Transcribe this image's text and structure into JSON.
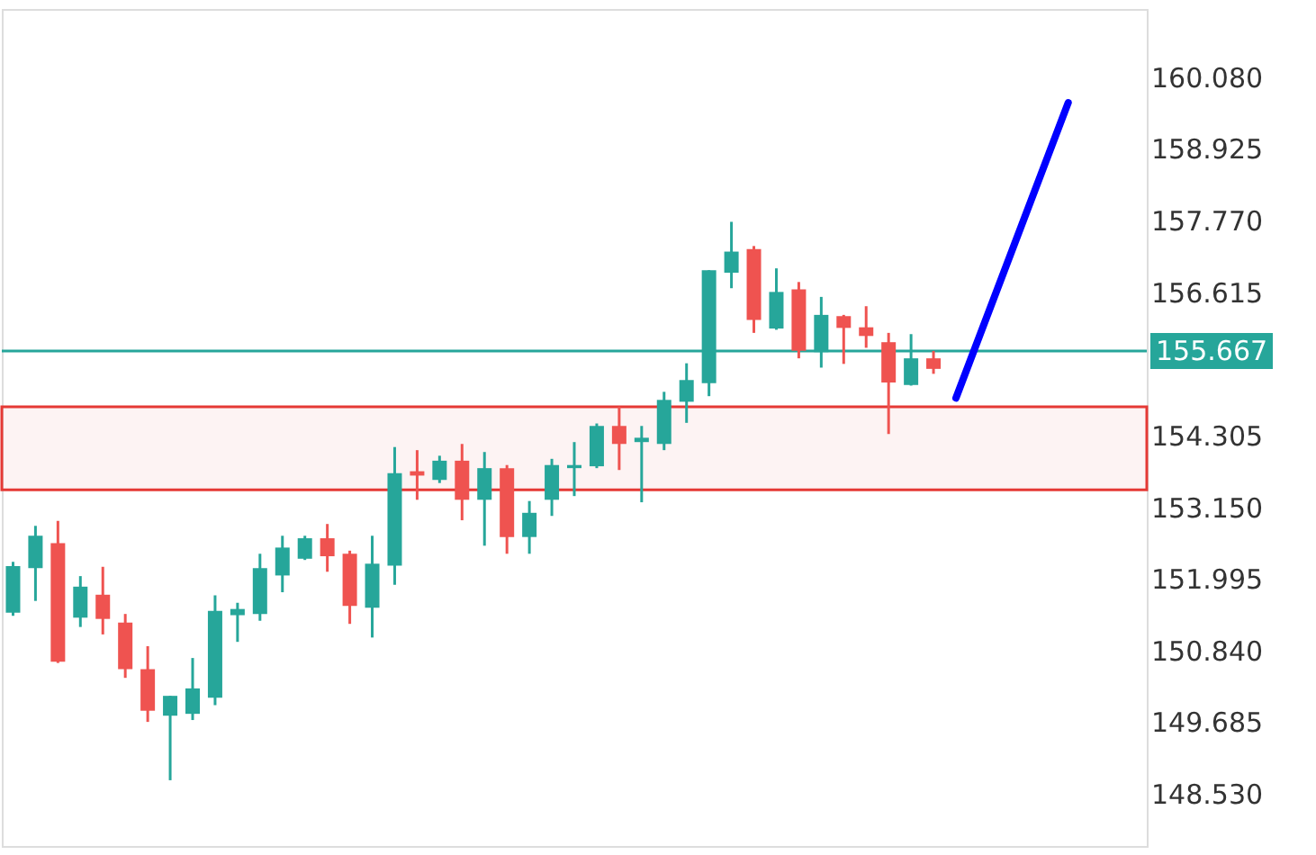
{
  "chart_data": {
    "type": "candlestick",
    "categories": [
      null,
      null,
      null,
      null,
      null,
      null,
      null,
      null,
      null,
      null,
      null,
      null,
      null,
      null,
      null,
      null,
      null,
      null,
      null,
      null,
      null,
      null,
      null,
      null,
      null,
      null,
      null,
      null,
      null,
      null,
      null,
      null,
      null,
      null,
      null,
      null,
      null,
      null,
      null,
      null,
      null,
      null,
      null,
      null,
      null,
      null,
      null,
      null,
      null,
      null,
      null
    ],
    "ohlc": [
      [
        151.45,
        152.27,
        151.4,
        152.2
      ],
      [
        152.17,
        152.85,
        151.64,
        152.69
      ],
      [
        152.57,
        152.93,
        150.64,
        150.66
      ],
      [
        151.37,
        152.04,
        151.22,
        151.87
      ],
      [
        151.74,
        152.19,
        151.1,
        151.35
      ],
      [
        151.29,
        151.43,
        150.4,
        150.54
      ],
      [
        150.54,
        150.91,
        149.69,
        149.87
      ],
      [
        149.79,
        150.11,
        148.75,
        150.11
      ],
      [
        149.82,
        150.72,
        149.72,
        150.23
      ],
      [
        150.08,
        151.73,
        149.96,
        151.48
      ],
      [
        151.41,
        151.61,
        150.98,
        151.51
      ],
      [
        151.43,
        152.4,
        151.32,
        152.17
      ],
      [
        152.05,
        152.69,
        151.78,
        152.5
      ],
      [
        152.32,
        152.69,
        152.3,
        152.65
      ],
      [
        152.65,
        152.88,
        152.11,
        152.36
      ],
      [
        152.4,
        152.45,
        151.27,
        151.56
      ],
      [
        151.53,
        152.69,
        151.05,
        152.24
      ],
      [
        152.21,
        154.12,
        151.9,
        153.7
      ],
      [
        153.73,
        154.07,
        153.27,
        153.66
      ],
      [
        153.59,
        153.98,
        153.54,
        153.9
      ],
      [
        153.9,
        154.17,
        152.94,
        153.27
      ],
      [
        153.27,
        154.04,
        152.53,
        153.78
      ],
      [
        153.78,
        153.83,
        152.4,
        152.67
      ],
      [
        152.67,
        153.25,
        152.4,
        153.06
      ],
      [
        153.27,
        153.93,
        153.01,
        153.83
      ],
      [
        153.78,
        154.2,
        153.33,
        153.83
      ],
      [
        153.81,
        154.5,
        153.78,
        154.46
      ],
      [
        154.46,
        154.77,
        153.75,
        154.17
      ],
      [
        154.2,
        154.46,
        153.23,
        154.27
      ],
      [
        154.17,
        155.01,
        154.07,
        154.88
      ],
      [
        154.85,
        155.47,
        154.51,
        155.2
      ],
      [
        155.15,
        156.97,
        154.94,
        156.97
      ],
      [
        156.93,
        157.75,
        156.68,
        157.27
      ],
      [
        157.31,
        157.36,
        155.96,
        156.17
      ],
      [
        156.03,
        157.0,
        156.01,
        156.62
      ],
      [
        156.66,
        156.78,
        155.55,
        155.67
      ],
      [
        155.65,
        156.54,
        155.4,
        156.25
      ],
      [
        156.23,
        156.25,
        155.46,
        156.04
      ],
      [
        156.05,
        156.39,
        155.72,
        155.91
      ],
      [
        155.81,
        155.96,
        154.33,
        155.16
      ],
      [
        155.12,
        155.94,
        155.11,
        155.55
      ],
      [
        155.55,
        155.67,
        155.3,
        155.38
      ],
      null,
      null,
      null,
      null,
      null,
      null,
      null,
      null,
      null
    ],
    "series": [
      {
        "type": "line",
        "color": "#0000ff",
        "values": [
          null,
          null,
          null,
          null,
          null,
          null,
          null,
          null,
          null,
          null,
          null,
          null,
          null,
          null,
          null,
          null,
          null,
          null,
          null,
          null,
          null,
          null,
          null,
          null,
          null,
          null,
          null,
          null,
          null,
          null,
          null,
          null,
          null,
          null,
          null,
          null,
          null,
          null,
          null,
          null,
          null,
          null,
          154.91,
          null,
          null,
          null,
          null,
          159.67,
          null,
          null,
          null
        ]
      }
    ],
    "ylim": [
      147.69,
      161.18
    ],
    "yticks": [
      {
        "value": 148.53,
        "label": "148.530"
      },
      149.685,
      {
        "value": 150.84,
        "label": "150.840"
      },
      151.995,
      {
        "value": 153.15,
        "label": "153.150"
      },
      154.305,
      156.615,
      {
        "value": 157.77,
        "label": "157.770"
      },
      158.925,
      {
        "value": 160.08,
        "label": "160.080"
      }
    ],
    "ref_lines": [
      {
        "axis": "y",
        "value": 155.667,
        "label": "155.667",
        "color": "#26a69a"
      }
    ],
    "bands": [
      {
        "axis": "y",
        "from": 153.43,
        "to": 154.77,
        "color": "#e53935"
      }
    ],
    "grid": false
  }
}
